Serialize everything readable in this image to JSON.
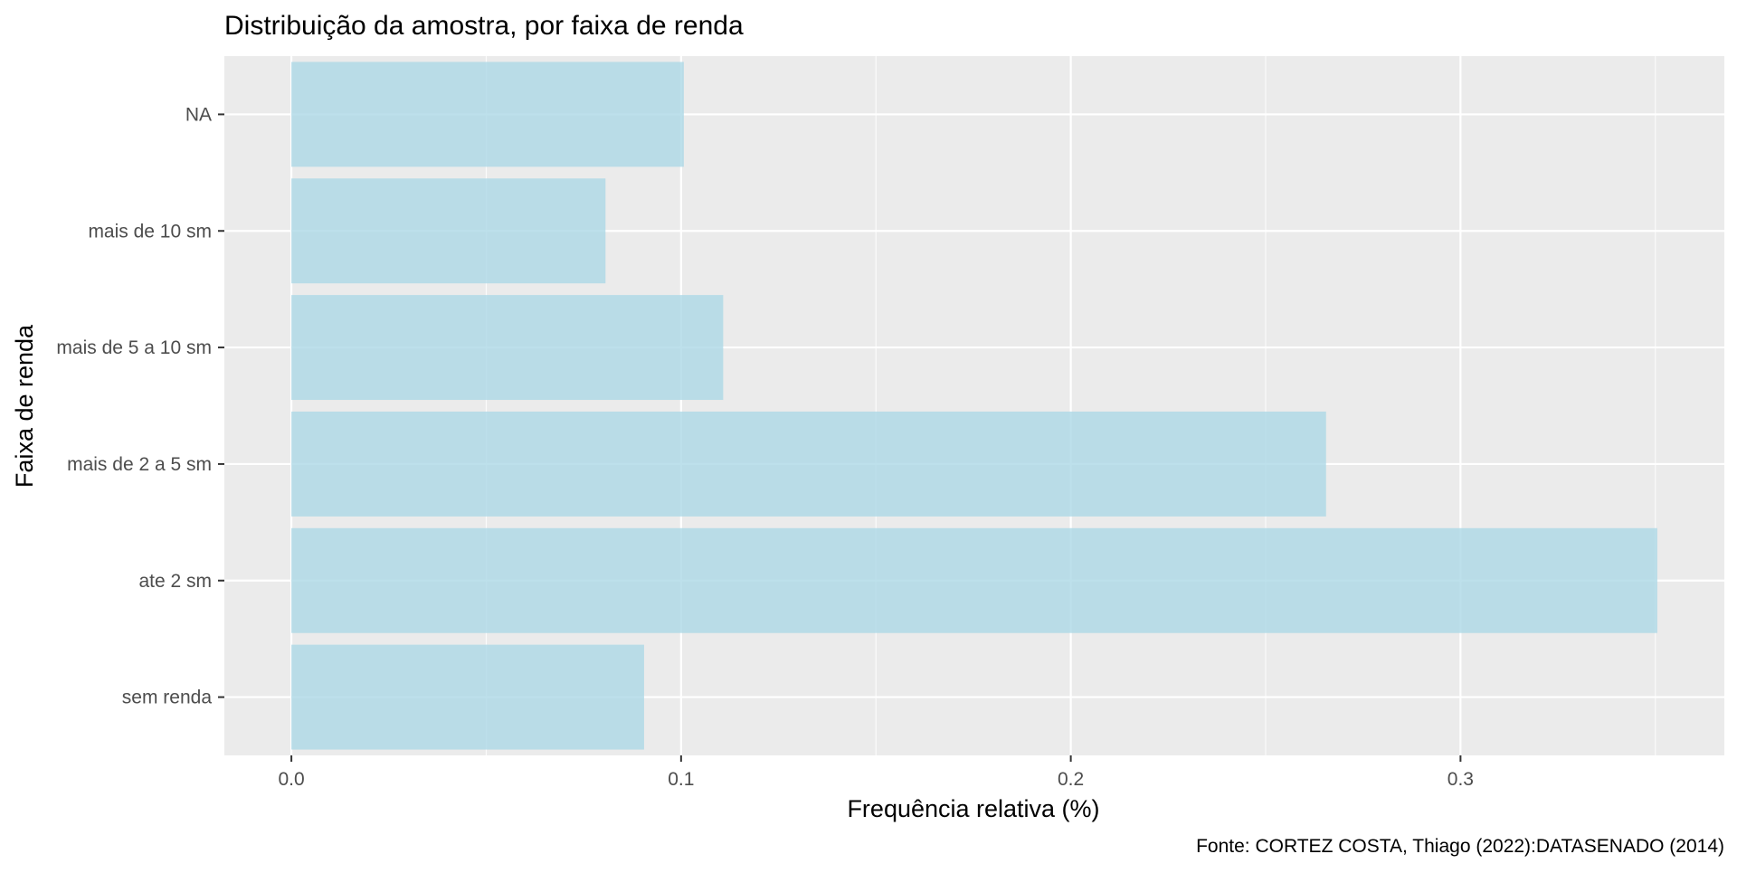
{
  "chart_data": {
    "type": "bar",
    "orientation": "horizontal",
    "title": "Distribuição da amostra, por faixa de renda",
    "xlabel": "Frequência relativa (%)",
    "ylabel": "Faixa de renda",
    "caption": "Fonte: CORTEZ COSTA, Thiago (2022):DATASENADO (2014)",
    "categories": [
      "sem renda",
      "ate 2 sm",
      "mais de 2 a 5 sm",
      "mais de 5 a 10 sm",
      "mais de 10 sm",
      "NA"
    ],
    "values": [
      0.0905,
      0.3505,
      0.2655,
      0.1108,
      0.0806,
      0.1007
    ],
    "xlim": [
      -0.0172,
      0.3677
    ],
    "xticks": [
      0.0,
      0.1,
      0.2,
      0.3
    ],
    "xtick_labels": [
      "0.0",
      "0.1",
      "0.2",
      "0.3"
    ],
    "grid": true,
    "legend": "none",
    "colors": {
      "bar": "#ADD8E6",
      "bar_opacity": 0.8,
      "panel_background": "#EBEBEB",
      "grid_major": "#FFFFFF",
      "tick_text": "#4D4D4D",
      "title_text": "#000000"
    }
  }
}
